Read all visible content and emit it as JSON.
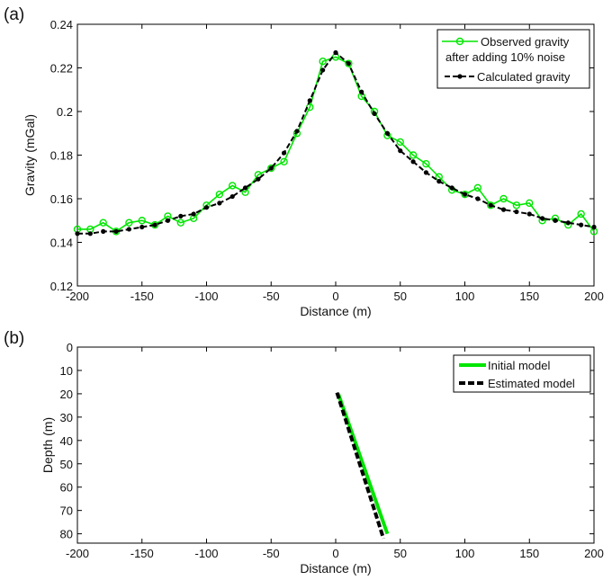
{
  "chart_data": [
    {
      "panel_label": "(a)",
      "type": "line",
      "xlabel": "Distance (m)",
      "ylabel": "Gravity (mGal)",
      "xlim": [
        -200,
        200
      ],
      "ylim": [
        0.12,
        0.24
      ],
      "xticks": [
        -200,
        -150,
        -100,
        -50,
        0,
        50,
        100,
        150,
        200
      ],
      "yticks": [
        0.12,
        0.14,
        0.16,
        0.18,
        0.2,
        0.22,
        0.24
      ],
      "ytick_labels": [
        "0.12",
        "0.14",
        "0.16",
        "0.18",
        "0.2",
        "0.22",
        "0.24"
      ],
      "grid": false,
      "legend_position": "top-right",
      "x": [
        -200,
        -190,
        -180,
        -170,
        -160,
        -150,
        -140,
        -130,
        -120,
        -110,
        -100,
        -90,
        -80,
        -70,
        -60,
        -50,
        -40,
        -30,
        -20,
        -10,
        0,
        10,
        20,
        30,
        40,
        50,
        60,
        70,
        80,
        90,
        100,
        110,
        120,
        130,
        140,
        150,
        160,
        170,
        180,
        190,
        200
      ],
      "series": [
        {
          "name_line1": "Observed gravity",
          "name_line2": "after adding 10% noise",
          "color": "#00e600",
          "marker": "circle",
          "linestyle": "solid",
          "values": [
            0.146,
            0.146,
            0.149,
            0.145,
            0.149,
            0.15,
            0.148,
            0.152,
            0.149,
            0.151,
            0.157,
            0.162,
            0.166,
            0.163,
            0.171,
            0.174,
            0.177,
            0.19,
            0.202,
            0.223,
            0.225,
            0.222,
            0.207,
            0.2,
            0.189,
            0.186,
            0.18,
            0.176,
            0.17,
            0.164,
            0.162,
            0.165,
            0.157,
            0.16,
            0.157,
            0.158,
            0.15,
            0.151,
            0.148,
            0.153,
            0.145
          ]
        },
        {
          "name": "Calculated gravity",
          "color": "#000000",
          "marker": "star",
          "linestyle": "dashed",
          "values": [
            0.144,
            0.144,
            0.145,
            0.145,
            0.146,
            0.147,
            0.148,
            0.15,
            0.152,
            0.153,
            0.156,
            0.158,
            0.161,
            0.165,
            0.169,
            0.174,
            0.181,
            0.191,
            0.205,
            0.219,
            0.227,
            0.222,
            0.209,
            0.199,
            0.19,
            0.182,
            0.177,
            0.172,
            0.168,
            0.165,
            0.162,
            0.16,
            0.157,
            0.155,
            0.154,
            0.153,
            0.151,
            0.15,
            0.149,
            0.148,
            0.147
          ]
        }
      ]
    },
    {
      "panel_label": "(b)",
      "type": "line",
      "xlabel": "Distance (m)",
      "ylabel": "Depth (m)",
      "xlim": [
        -200,
        200
      ],
      "ylim": [
        0,
        84
      ],
      "y_reversed": true,
      "xticks": [
        -200,
        -150,
        -100,
        -50,
        0,
        50,
        100,
        150,
        200
      ],
      "yticks": [
        0,
        10,
        20,
        30,
        40,
        50,
        60,
        70,
        80
      ],
      "grid": false,
      "legend_position": "top-right",
      "series": [
        {
          "name": "Initial model",
          "color": "#00e600",
          "linestyle": "solid",
          "x": [
            2,
            40
          ],
          "y": [
            20,
            80
          ]
        },
        {
          "name": "Estimated model",
          "color": "#000000",
          "linestyle": "dashed",
          "x": [
            1,
            37
          ],
          "y": [
            19.5,
            82
          ]
        }
      ]
    }
  ]
}
